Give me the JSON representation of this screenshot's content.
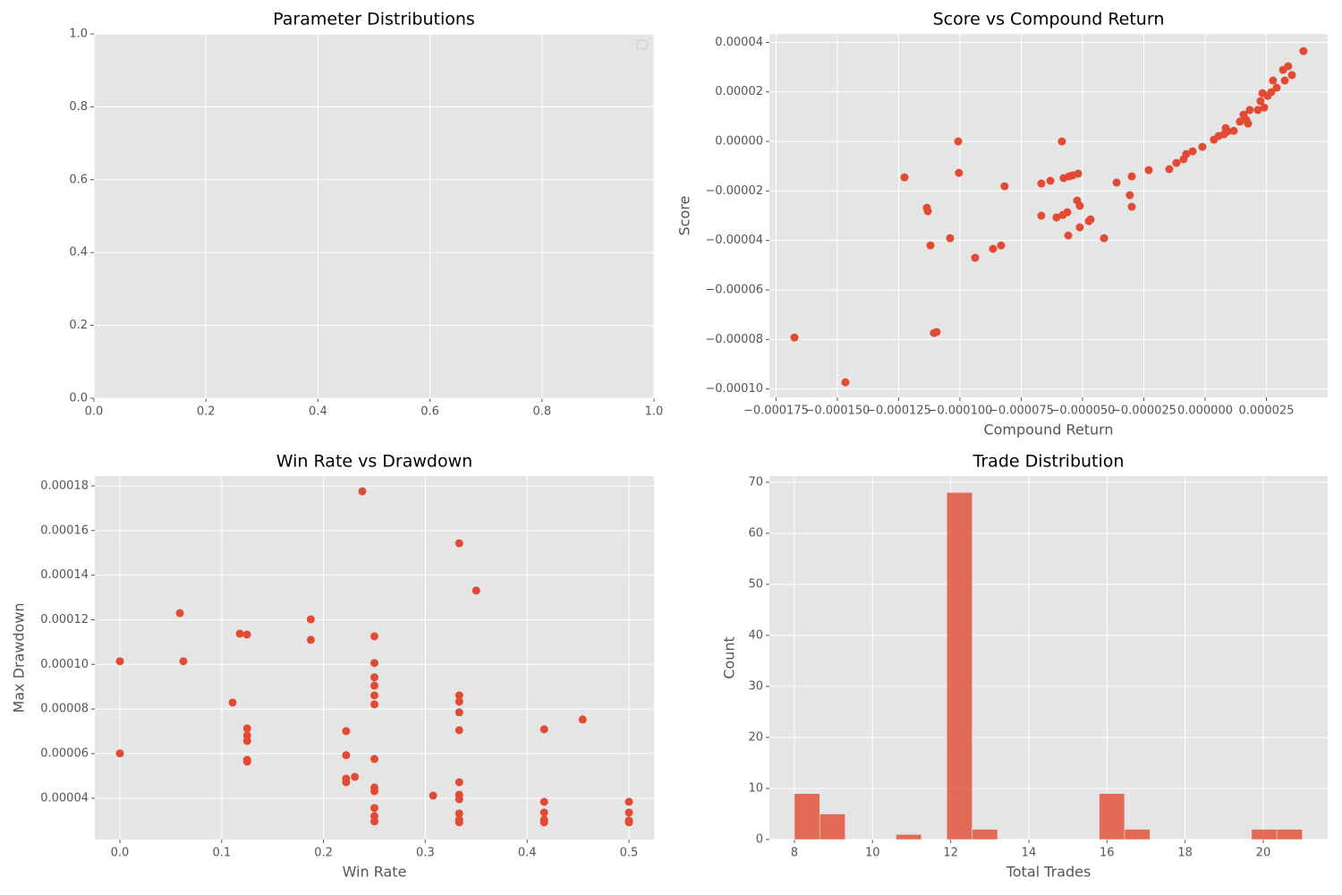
{
  "chart_data": [
    {
      "type": "empty",
      "title": "Parameter Distributions",
      "legend": "upper right",
      "xlim": [
        0,
        1
      ],
      "ylim": [
        0,
        1
      ],
      "xticks": [
        {
          "value": 0,
          "label": "0.0"
        },
        0.2,
        0.4,
        0.6,
        0.8,
        {
          "value": 1,
          "label": "1.0"
        }
      ],
      "yticks": [
        {
          "value": 0,
          "label": "0.0"
        },
        0.2,
        0.4,
        0.6,
        0.8,
        {
          "value": 1,
          "label": "1.0"
        }
      ],
      "grid": true
    },
    {
      "type": "scatter",
      "title": "Score vs Compound Return",
      "x_label": "Compound Return",
      "y_label": "Score",
      "color": "#e24a33",
      "xlim": [
        -0.0001777,
        5e-05
      ],
      "ylim": [
        -0.0001034,
        4.34e-05
      ],
      "xticks": [
        {
          "value": -0.000175,
          "label": "−0.000175"
        },
        {
          "value": -0.00015,
          "label": "−0.000150"
        },
        {
          "value": -0.000125,
          "label": "−0.000125"
        },
        {
          "value": -0.0001,
          "label": "−0.000100"
        },
        {
          "value": -7.5e-05,
          "label": "−0.000075"
        },
        {
          "value": -5e-05,
          "label": "−0.000050"
        },
        {
          "value": -2.5e-05,
          "label": "−0.000025"
        },
        {
          "value": 0,
          "label": "0.000000"
        },
        {
          "value": 2.5e-05,
          "label": "0.000025"
        }
      ],
      "yticks": [
        {
          "value": -0.0001,
          "label": "−0.00010"
        },
        {
          "value": -8e-05,
          "label": "−0.00008"
        },
        {
          "value": -6e-05,
          "label": "−0.00006"
        },
        {
          "value": -4e-05,
          "label": "−0.00004"
        },
        {
          "value": -2e-05,
          "label": "−0.00002"
        },
        {
          "value": 0,
          "label": "0.00000"
        },
        {
          "value": 2e-05,
          "label": "0.00002"
        },
        {
          "value": 4e-05,
          "label": "0.00004"
        }
      ],
      "grid": true,
      "x": [
        -0.0001675,
        -0.0001467,
        -0.0001226,
        -0.0001135,
        -0.0001131,
        -0.000112,
        -0.0001106,
        -0.0001095,
        -0.000104,
        -0.0001007,
        -0.0001004,
        -9.38e-05,
        -8.65e-05,
        -8.32e-05,
        -8.18e-05,
        -6.68e-05,
        -6.68e-05,
        -6.31e-05,
        -6.06e-05,
        -5.84e-05,
        -5.8e-05,
        -5.77e-05,
        -5.62e-05,
        -5.58e-05,
        -5.55e-05,
        -5.4e-05,
        -5.18e-05,
        -5.22e-05,
        -5.11e-05,
        -5.11e-05,
        -4.74e-05,
        -4.67e-05,
        -4.12e-05,
        -3.61e-05,
        -3.07e-05,
        -2.99e-05,
        -2.99e-05,
        -2.3e-05,
        -1.46e-05,
        -1.17e-05,
        -8.8e-06,
        -7.7e-06,
        -5.1e-06,
        -1.1e-06,
        3.6e-06,
        5.5e-06,
        7.7e-06,
        8.4e-06,
        9.1e-06,
        1.17e-05,
        1.42e-05,
        1.57e-05,
        1.68e-05,
        1.75e-05,
        1.82e-05,
        2.15e-05,
        2.26e-05,
        2.34e-05,
        2.41e-05,
        2.55e-05,
        2.7e-05,
        2.77e-05,
        2.92e-05,
        3.18e-05,
        3.25e-05,
        3.39e-05,
        3.54e-05,
        4.01e-05
      ],
      "values": [
        -7.92e-05,
        -9.73e-05,
        -1.45e-05,
        -2.68e-05,
        -2.82e-05,
        -4.2e-05,
        -7.74e-05,
        -7.7e-05,
        -3.91e-05,
        0,
        -1.27e-05,
        -4.7e-05,
        -4.34e-05,
        -4.2e-05,
        -1.81e-05,
        -1.7e-05,
        -3e-05,
        -1.59e-05,
        -3.07e-05,
        0,
        -2.97e-05,
        -1.48e-05,
        -2.86e-05,
        -3.8e-05,
        -1.41e-05,
        -1.37e-05,
        -1.3e-05,
        -2.39e-05,
        -2.6e-05,
        -3.47e-05,
        -3.22e-05,
        -3.15e-05,
        -3.91e-05,
        -1.66e-05,
        -2.17e-05,
        -1.41e-05,
        -2.64e-05,
        -1.16e-05,
        -1.12e-05,
        -8.7e-06,
        -7.2e-06,
        -5.1e-06,
        -4e-06,
        -2.2e-06,
        7e-07,
        2.2e-06,
        2.9e-06,
        5.4e-06,
        4e-06,
        4.3e-06,
        8e-06,
        1.08e-05,
        8.7e-06,
        7.2e-06,
        1.27e-05,
        1.27e-05,
        1.63e-05,
        1.95e-05,
        1.37e-05,
        1.84e-05,
        1.99e-05,
        2.46e-05,
        2.17e-05,
        2.89e-05,
        2.46e-05,
        3.04e-05,
        2.68e-05,
        3.65e-05
      ]
    },
    {
      "type": "scatter",
      "title": "Win Rate vs Drawdown",
      "x_label": "Win Rate",
      "y_label": "Max Drawdown",
      "color": "#e24a33",
      "xlim": [
        -0.0246,
        0.5246
      ],
      "ylim": [
        2.15e-05,
        0.0001844
      ],
      "xticks": [
        {
          "value": 0,
          "label": "0.0"
        },
        0.1,
        0.2,
        0.3,
        0.4,
        0.5
      ],
      "yticks": [
        {
          "value": 4e-05,
          "label": "0.00004"
        },
        {
          "value": 6e-05,
          "label": "0.00006"
        },
        {
          "value": 8e-05,
          "label": "0.00008"
        },
        {
          "value": 0.0001,
          "label": "0.00010"
        },
        {
          "value": 0.00012,
          "label": "0.00012"
        },
        {
          "value": 0.00014,
          "label": "0.00014"
        },
        {
          "value": 0.00016,
          "label": "0.00016"
        },
        {
          "value": 0.00018,
          "label": "0.00018"
        }
      ],
      "grid": true,
      "x": [
        0,
        0,
        0.0589,
        0.0624,
        0.1107,
        0.1178,
        0.1248,
        0.125,
        0.125,
        0.125,
        0.125,
        0.125,
        0.1875,
        0.1875,
        0.2222,
        0.2222,
        0.2222,
        0.2222,
        0.2308,
        0.2381,
        0.25,
        0.25,
        0.25,
        0.25,
        0.25,
        0.25,
        0.25,
        0.25,
        0.25,
        0.25,
        0.25,
        0.25,
        0.3077,
        0.3333,
        0.3333,
        0.3333,
        0.3333,
        0.3333,
        0.3333,
        0.3333,
        0.3333,
        0.3333,
        0.3333,
        0.3333,
        0.35,
        0.4167,
        0.4167,
        0.4167,
        0.4167,
        0.4167,
        0.4545,
        0.5,
        0.5,
        0.5,
        0.5
      ],
      "values": [
        0.0001014,
        6.01e-05,
        0.000123,
        0.0001014,
        8.29e-05,
        0.0001138,
        0.0001134,
        7.13e-05,
        6.81e-05,
        6.57e-05,
        5.72e-05,
        5.64e-05,
        0.0001202,
        0.000111,
        7.01e-05,
        5.93e-05,
        4.88e-05,
        4.72e-05,
        4.96e-05,
        0.0001776,
        0.0001126,
        0.0001006,
        9.42e-05,
        9.05e-05,
        8.61e-05,
        8.21e-05,
        5.76e-05,
        4.48e-05,
        4.32e-05,
        3.56e-05,
        3.2e-05,
        2.96e-05,
        4.12e-05,
        0.0001543,
        8.61e-05,
        8.33e-05,
        7.85e-05,
        7.05e-05,
        4.72e-05,
        4.16e-05,
        3.96e-05,
        3.32e-05,
        3.04e-05,
        2.92e-05,
        0.0001331,
        7.09e-05,
        3.84e-05,
        3.36e-05,
        3.04e-05,
        2.92e-05,
        7.53e-05,
        3.84e-05,
        3.36e-05,
        3e-05,
        2.92e-05
      ]
    },
    {
      "type": "histogram",
      "title": "Trade Distribution",
      "x_label": "Total Trades",
      "y_label": "Count",
      "color": "#e24a33",
      "xlim": [
        7.36,
        21.65
      ],
      "ylim": [
        0,
        71.2
      ],
      "xticks": [
        8,
        10,
        12,
        14,
        16,
        18,
        20
      ],
      "yticks": [
        0,
        10,
        20,
        30,
        40,
        50,
        60,
        70
      ],
      "grid": true,
      "bins": [
        8,
        8.65,
        9.3,
        9.95,
        10.6,
        11.25,
        11.9,
        12.55,
        13.2,
        13.85,
        14.5,
        15.15,
        15.8,
        16.45,
        17.1,
        17.75,
        18.4,
        19.05,
        19.7,
        20.35,
        21
      ],
      "values": [
        9,
        5,
        0,
        0,
        1,
        0,
        68,
        2,
        0,
        0,
        0,
        0,
        9,
        2,
        0,
        0,
        0,
        0,
        2,
        2
      ]
    }
  ]
}
